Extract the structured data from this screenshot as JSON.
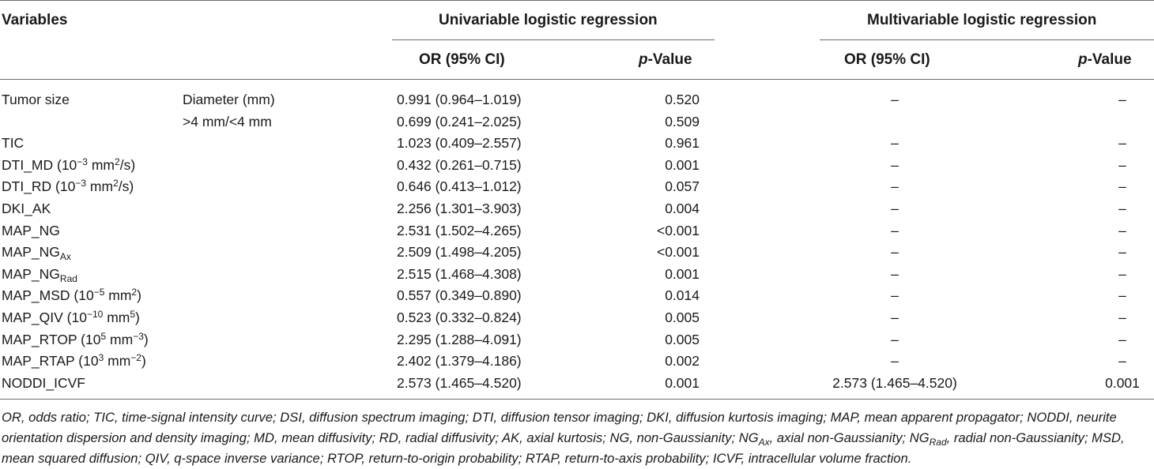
{
  "header": {
    "variables": "Variables",
    "uni_group": "Univariable logistic regression",
    "multi_group": "Multivariable logistic regression",
    "or_ci": "OR (95% CI)",
    "p_italic": "p",
    "p_rest": "-Value"
  },
  "rows": [
    {
      "name": "Tumor size",
      "sub": "Diameter (mm)",
      "uni_or": "0.991 (0.964–1.019)",
      "uni_p": "0.520",
      "multi_or": "–",
      "multi_p": "–"
    },
    {
      "name": "",
      "sub": ">4 mm/<4 mm",
      "uni_or": "0.699 (0.241–2.025)",
      "uni_p": "0.509",
      "multi_or": "",
      "multi_p": ""
    },
    {
      "name": "TIC",
      "sub": "",
      "uni_or": "1.023 (0.409–2.557)",
      "uni_p": "0.961",
      "multi_or": "–",
      "multi_p": "–"
    },
    {
      "name_parts": [
        "DTI_MD (10",
        "−3",
        " mm",
        "2",
        "/s)"
      ],
      "sub": "",
      "uni_or": "0.432 (0.261–0.715)",
      "uni_p": "0.001",
      "multi_or": "–",
      "multi_p": "–"
    },
    {
      "name_parts": [
        "DTI_RD (10",
        "−3",
        " mm",
        "2",
        "/s)"
      ],
      "sub": "",
      "uni_or": "0.646 (0.413–1.012)",
      "uni_p": "0.057",
      "multi_or": "–",
      "multi_p": "–"
    },
    {
      "name": "DKI_AK",
      "sub": "",
      "uni_or": "2.256 (1.301–3.903)",
      "uni_p": "0.004",
      "multi_or": "–",
      "multi_p": "–"
    },
    {
      "name": "MAP_NG",
      "sub": "",
      "uni_or": "2.531 (1.502–4.265)",
      "uni_p": "<0.001",
      "multi_or": "–",
      "multi_p": "–"
    },
    {
      "name_parts": [
        "MAP_NG",
        "Ax"
      ],
      "sub": "",
      "uni_or": "2.509 (1.498–4.205)",
      "uni_p": "<0.001",
      "multi_or": "–",
      "multi_p": "–"
    },
    {
      "name_parts": [
        "MAP_NG",
        "Rad"
      ],
      "sub": "",
      "uni_or": "2.515 (1.468–4.308)",
      "uni_p": "0.001",
      "multi_or": "–",
      "multi_p": "–"
    },
    {
      "name_parts": [
        "MAP_MSD (10",
        "−5",
        " mm",
        "2",
        ")"
      ],
      "sub": "",
      "uni_or": "0.557 (0.349–0.890)",
      "uni_p": "0.014",
      "multi_or": "–",
      "multi_p": "–"
    },
    {
      "name_parts": [
        "MAP_QIV (10",
        "−10",
        " mm",
        "5",
        ")"
      ],
      "sub": "",
      "uni_or": "0.523 (0.332–0.824)",
      "uni_p": "0.005",
      "multi_or": "–",
      "multi_p": "–"
    },
    {
      "name_parts": [
        "MAP_RTOP (10",
        "5",
        " mm",
        "−3",
        ")"
      ],
      "sub": "",
      "uni_or": "2.295 (1.288–4.091)",
      "uni_p": "0.005",
      "multi_or": "–",
      "multi_p": "–"
    },
    {
      "name_parts": [
        "MAP_RTAP (10",
        "3",
        " mm",
        "−2",
        ")"
      ],
      "sub": "",
      "uni_or": "2.402 (1.379–4.186)",
      "uni_p": "0.002",
      "multi_or": "–",
      "multi_p": "–"
    },
    {
      "name": "NODDI_ICVF",
      "sub": "",
      "uni_or": "2.573 (1.465–4.520)",
      "uni_p": "0.001",
      "multi_or": "2.573 (1.465–4.520)",
      "multi_p": "0.001"
    }
  ],
  "footnote": {
    "p1": "OR, odds ratio; TIC, time-signal intensity curve; DSI, diffusion spectrum imaging; DTI, diffusion tensor imaging; DKI, diffusion kurtosis imaging; MAP, mean apparent propagator; NODDI, neurite orientation dispersion and density imaging; MD, mean diffusivity; RD, radial diffusivity; AK, axial kurtosis; NG, non-Gaussianity; NG",
    "s1": "Ax",
    "p2": ", axial non-Gaussianity; NG",
    "s2": "Rad",
    "p3": ", radial non-Gaussianity; MSD, mean squared diffusion; QIV, q-space inverse variance; RTOP, return-to-origin probability; RTAP, return-to-axis probability; ICVF, intracellular volume fraction."
  }
}
